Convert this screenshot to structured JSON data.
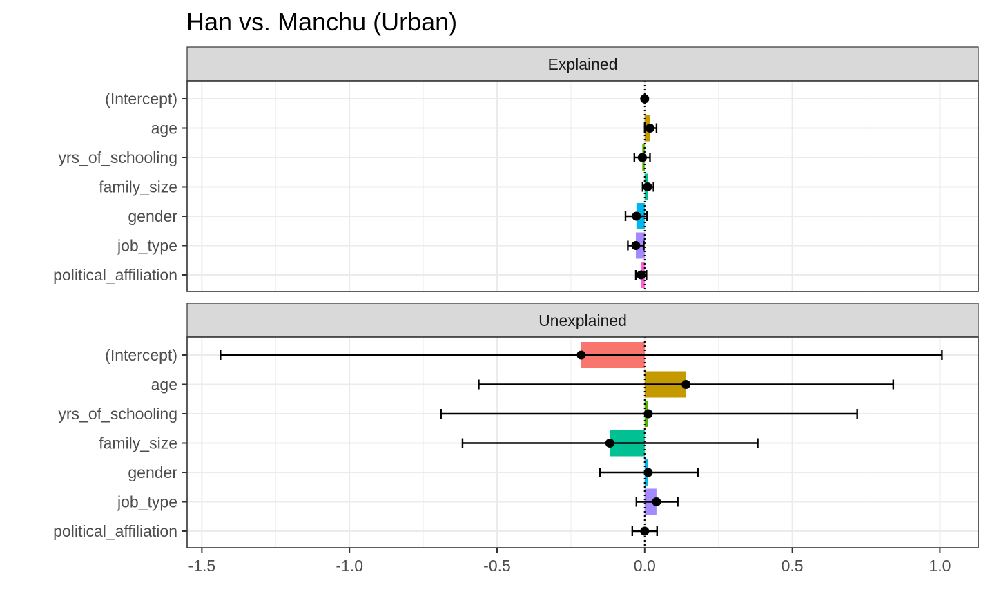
{
  "chart_data": {
    "type": "bar",
    "title": "Han vs. Manchu (Urban)",
    "xlabel": "",
    "ylabel": "",
    "xlim": [
      -1.55,
      1.13
    ],
    "x_ticks": [
      -1.5,
      -1.0,
      -0.5,
      0.0,
      0.5,
      1.0
    ],
    "x_tick_labels": [
      "-1.5",
      "-1.0",
      "-0.5",
      "0.0",
      "0.5",
      "1.0"
    ],
    "reference_line": 0,
    "grid": true,
    "legend": "none",
    "categories": [
      "(Intercept)",
      "age",
      "yrs_of_schooling",
      "family_size",
      "gender",
      "job_type",
      "political_affiliation"
    ],
    "category_colors": [
      "#F8766D",
      "#C49A00",
      "#53B400",
      "#00C094",
      "#00B6EB",
      "#A58AFF",
      "#FB61D7"
    ],
    "panels": [
      {
        "label": "Explained",
        "values": [
          0.0,
          0.018,
          -0.008,
          0.01,
          -0.028,
          -0.03,
          -0.012
        ],
        "ci_low": [
          0.0,
          0.0,
          -0.035,
          -0.007,
          -0.065,
          -0.057,
          -0.03
        ],
        "ci_high": [
          0.0,
          0.04,
          0.018,
          0.03,
          0.008,
          -0.003,
          0.006
        ]
      },
      {
        "label": "Unexplained",
        "values": [
          -0.215,
          0.14,
          0.012,
          -0.118,
          0.012,
          0.04,
          0.0
        ],
        "ci_low": [
          -1.437,
          -0.562,
          -0.69,
          -0.617,
          -0.152,
          -0.028,
          -0.042
        ],
        "ci_high": [
          1.007,
          0.842,
          0.72,
          0.383,
          0.18,
          0.112,
          0.042
        ]
      }
    ]
  }
}
